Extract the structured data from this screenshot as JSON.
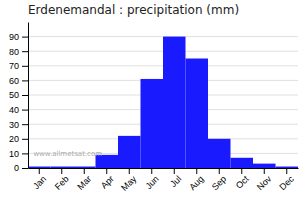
{
  "chart_data": {
    "type": "bar",
    "title": "Erdenemandal : precipitation (mm)",
    "categories": [
      "Jan",
      "Feb",
      "Mar",
      "Apr",
      "May",
      "Jun",
      "Jul",
      "Aug",
      "Sep",
      "Oct",
      "Nov",
      "Dec"
    ],
    "values": [
      1,
      1,
      1,
      9,
      22,
      61,
      90,
      75,
      20,
      7,
      3,
      1
    ],
    "color": "#1a1aff",
    "ylim": [
      0,
      100
    ],
    "yticks": [
      0,
      10,
      20,
      30,
      40,
      50,
      60,
      70,
      80,
      90
    ],
    "grid": true,
    "annotations": [
      "www.allmetsat.com"
    ]
  }
}
